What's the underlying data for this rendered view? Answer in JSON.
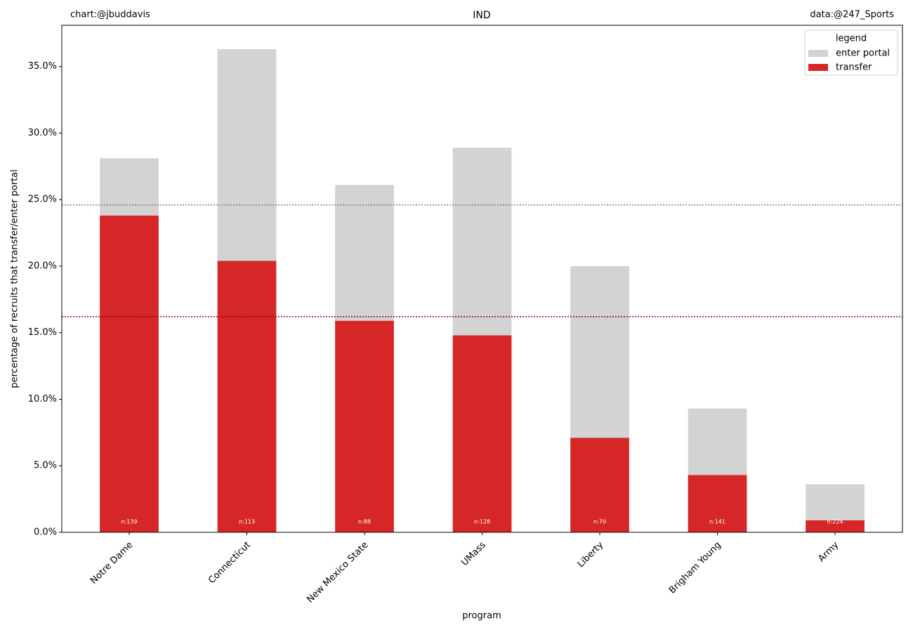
{
  "chart_data": {
    "type": "bar",
    "stacked": true,
    "title": "IND",
    "credit": "chart:@jbuddavis",
    "source": "data:@247_Sports",
    "x_label": "program",
    "y_label": "percentage of recruits that transfer/enter portal",
    "categories": [
      "Notre Dame",
      "Connecticut",
      "New Mexico State",
      "UMass",
      "Liberty",
      "Brigham Young",
      "Army"
    ],
    "series": [
      {
        "name": "transfer",
        "color": "#d62728",
        "values": [
          23.8,
          20.4,
          15.9,
          14.8,
          7.1,
          4.3,
          0.9
        ]
      },
      {
        "name": "enter portal",
        "color": "#d3d3d3",
        "values": [
          4.3,
          15.9,
          10.2,
          14.1,
          12.9,
          5.0,
          2.7
        ]
      }
    ],
    "bar_labels": [
      "n:139",
      "n:113",
      "n:88",
      "n:128",
      "n:70",
      "n:141",
      "n:224"
    ],
    "reference_lines": [
      {
        "value": 24.6,
        "color": "#808080"
      },
      {
        "value": 16.2,
        "color": "#8b0000"
      }
    ],
    "ylim": [
      0,
      38.1
    ],
    "yticks": [
      {
        "value": 0,
        "label": "0.0%"
      },
      {
        "value": 5,
        "label": "5.0%"
      },
      {
        "value": 10,
        "label": "10.0%"
      },
      {
        "value": 15,
        "label": "15.0%"
      },
      {
        "value": 20,
        "label": "20.0%"
      },
      {
        "value": 25,
        "label": "25.0%"
      },
      {
        "value": 30,
        "label": "30.0%"
      },
      {
        "value": 35,
        "label": "35.0%"
      }
    ],
    "legend_title": "legend",
    "legend_position": "upper right",
    "grid": false
  }
}
